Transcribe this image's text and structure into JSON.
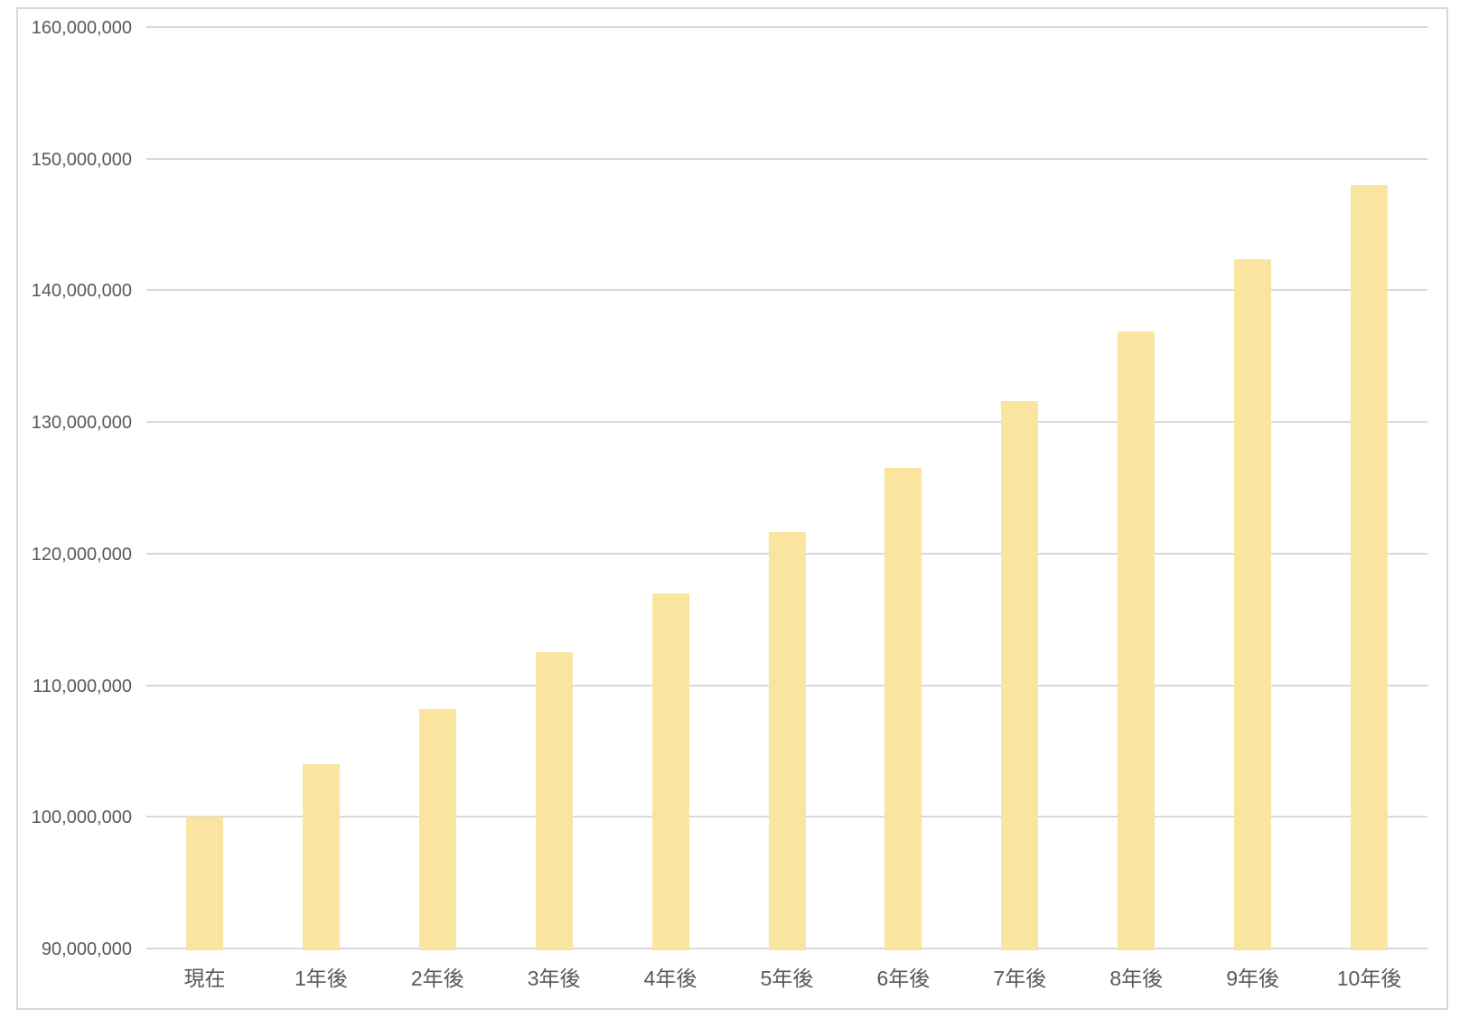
{
  "chart_data": {
    "type": "bar",
    "title": "",
    "xlabel": "",
    "ylabel": "",
    "categories": [
      "現在",
      "1年後",
      "2年後",
      "3年後",
      "4年後",
      "5年後",
      "6年後",
      "7年後",
      "8年後",
      "9年後",
      "10年後"
    ],
    "values": [
      100000000,
      104000000,
      108160000,
      112486400,
      116985856,
      121665290,
      126531902,
      131593178,
      136856905,
      142331181,
      148024428
    ],
    "ylim": [
      90000000,
      160000000
    ],
    "ytick_step": 10000000,
    "ytick_labels": [
      "90,000,000",
      "100,000,000",
      "110,000,000",
      "120,000,000",
      "130,000,000",
      "140,000,000",
      "150,000,000",
      "160,000,000"
    ],
    "grid": true,
    "legend": false,
    "colors": {
      "bar": "#FAE5A0",
      "gridline": "#D9D9D9",
      "axis_line": "#D9D9D9",
      "axis_text": "#595959",
      "frame_border": "#D9D9D9",
      "background": "#FFFFFF"
    }
  }
}
